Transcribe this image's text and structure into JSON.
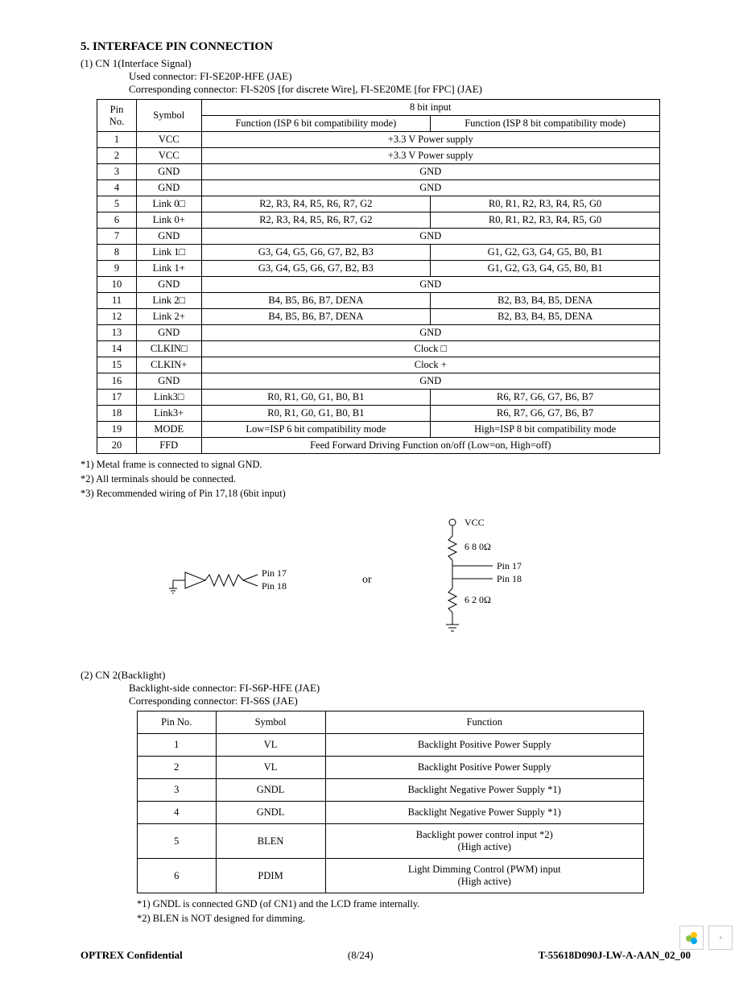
{
  "section_title": "5. INTERFACE PIN CONNECTION",
  "cn1": {
    "heading": "(1) CN 1(Interface Signal)",
    "used_conn": "Used connector: FI-SE20P-HFE (JAE)",
    "corr_conn": "Corresponding connector: FI-S20S [for discrete Wire], FI-SE20ME [for FPC] (JAE)",
    "header_pin": "Pin No.",
    "header_sym": "Symbol",
    "header_8bit": "8 bit input",
    "header_f1": "Function (ISP 6 bit compatibility mode)",
    "header_f2": "Function (ISP 8 bit compatibility mode)",
    "rows": [
      {
        "pin": "1",
        "sym": "VCC",
        "f": "+3.3 V Power supply",
        "span": true
      },
      {
        "pin": "2",
        "sym": "VCC",
        "f": "+3.3 V Power supply",
        "span": true
      },
      {
        "pin": "3",
        "sym": "GND",
        "f": "GND",
        "span": true
      },
      {
        "pin": "4",
        "sym": "GND",
        "f": "GND",
        "span": true
      },
      {
        "pin": "5",
        "sym": "Link 0□",
        "f1": "R2, R3, R4, R5, R6, R7, G2",
        "f2": "R0, R1, R2, R3, R4, R5, G0"
      },
      {
        "pin": "6",
        "sym": "Link 0+",
        "f1": "R2, R3, R4, R5, R6, R7, G2",
        "f2": "R0, R1, R2, R3, R4, R5, G0"
      },
      {
        "pin": "7",
        "sym": "GND",
        "f": "GND",
        "span": true
      },
      {
        "pin": "8",
        "sym": "Link 1□",
        "f1": "G3, G4, G5, G6, G7, B2, B3",
        "f2": "G1, G2, G3, G4, G5, B0, B1"
      },
      {
        "pin": "9",
        "sym": "Link 1+",
        "f1": "G3, G4, G5, G6, G7, B2, B3",
        "f2": "G1, G2, G3, G4, G5, B0, B1"
      },
      {
        "pin": "10",
        "sym": "GND",
        "f": "GND",
        "span": true
      },
      {
        "pin": "11",
        "sym": "Link 2□",
        "f1": "B4, B5, B6, B7, DENA",
        "f2": "B2, B3, B4, B5, DENA"
      },
      {
        "pin": "12",
        "sym": "Link 2+",
        "f1": "B4, B5, B6, B7, DENA",
        "f2": "B2, B3, B4, B5, DENA"
      },
      {
        "pin": "13",
        "sym": "GND",
        "f": "GND",
        "span": true
      },
      {
        "pin": "14",
        "sym": "CLKIN□",
        "f": "Clock □",
        "span": true
      },
      {
        "pin": "15",
        "sym": "CLKIN+",
        "f": "Clock +",
        "span": true
      },
      {
        "pin": "16",
        "sym": "GND",
        "f": "GND",
        "span": true
      },
      {
        "pin": "17",
        "sym": "Link3□",
        "f1": "R0, R1, G0, G1, B0, B1",
        "f2": "R6, R7, G6, G7, B6, B7"
      },
      {
        "pin": "18",
        "sym": "Link3+",
        "f1": "R0, R1, G0, G1, B0, B1",
        "f2": "R6, R7, G6, G7, B6, B7"
      },
      {
        "pin": "19",
        "sym": "MODE",
        "f1": "Low=ISP    6 bit compatibility mode",
        "f2": "High=ISP    8 bit compatibility mode"
      },
      {
        "pin": "20",
        "sym": "FFD",
        "f": "Feed Forward Driving Function on/off (Low=on, High=off)",
        "span": true
      }
    ],
    "notes": [
      "*1) Metal frame is connected to signal GND.",
      "*2) All terminals should be connected.",
      "*3) Recommended wiring of Pin 17,18 (6bit input)"
    ]
  },
  "diagram": {
    "pin17": "Pin 17",
    "pin18": "Pin 18",
    "or": "or",
    "vcc": "VCC",
    "r680": "6 8 0Ω",
    "r620": "6 2 0Ω"
  },
  "cn2": {
    "heading": "(2) CN 2(Backlight)",
    "bl_conn": "Backlight-side connector: FI-S6P-HFE (JAE)",
    "corr_conn": "Corresponding connector: FI-S6S (JAE)",
    "header_pin": "Pin No.",
    "header_sym": "Symbol",
    "header_fun": "Function",
    "rows": [
      {
        "pin": "1",
        "sym": "VL",
        "fun": "Backlight Positive Power Supply"
      },
      {
        "pin": "2",
        "sym": "VL",
        "fun": "Backlight Positive Power Supply"
      },
      {
        "pin": "3",
        "sym": "GNDL",
        "fun": "Backlight Negative Power Supply    *1)"
      },
      {
        "pin": "4",
        "sym": "GNDL",
        "fun": "Backlight Negative Power Supply    *1)"
      },
      {
        "pin": "5",
        "sym": "BLEN",
        "fun": "Backlight power control input    *2)\n(High active)"
      },
      {
        "pin": "6",
        "sym": "PDIM",
        "fun": "Light Dimming Control (PWM) input\n(High active)"
      }
    ],
    "notes": [
      "*1) GNDL is connected GND (of CN1) and the LCD frame internally.",
      "*2) BLEN is NOT designed for dimming."
    ]
  },
  "footer": {
    "left": "OPTREX  Confidential",
    "center": "(8/24)",
    "right": "T-55618D090J-LW-A-AAN_02_00"
  }
}
